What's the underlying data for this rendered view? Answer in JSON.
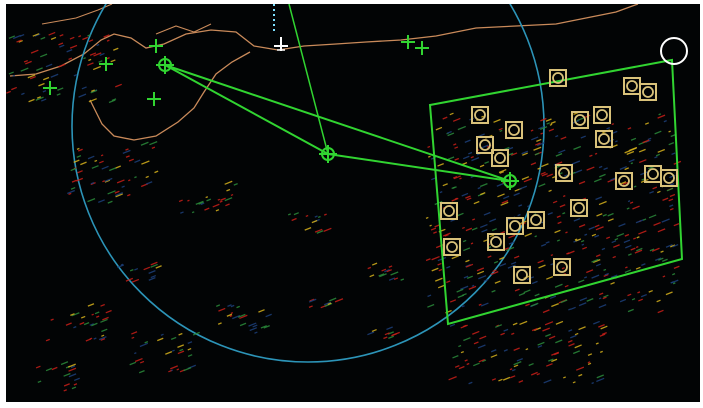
{
  "display": {
    "background": "#020405",
    "coastline_color": "#c98a5a",
    "range_ring_color": "#2c94b8",
    "route_color": "#31d431",
    "target_color": "#d9c27a",
    "marker_color": "#31d431",
    "vessel_color": "#ffffff",
    "clutter_colors": [
      "#c81f18",
      "#d6b11c",
      "#2a8a3a",
      "#1c3f7a"
    ]
  },
  "icons": {
    "target": "square-circle-target-icon",
    "waypoint": "circled-cross-waypoint-icon",
    "marker": "plus-marker-icon",
    "cursor": "circle-cursor-icon",
    "vessel": "vessel-symbol-icon"
  }
}
